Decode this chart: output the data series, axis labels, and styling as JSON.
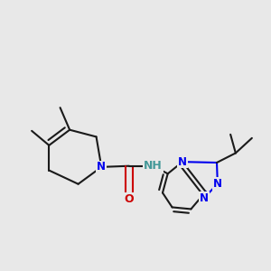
{
  "bg_color": "#e8e8e8",
  "bond_color": "#1a1a1a",
  "N_color": "#0000ee",
  "O_color": "#cc0000",
  "NH_color": "#449999",
  "line_width": 1.5,
  "font_size": 8.5,
  "fig_width": 3.0,
  "fig_height": 3.0,
  "dpi": 100,
  "xlim": [
    -0.05,
    1.0
  ],
  "ylim": [
    0.22,
    0.85
  ]
}
